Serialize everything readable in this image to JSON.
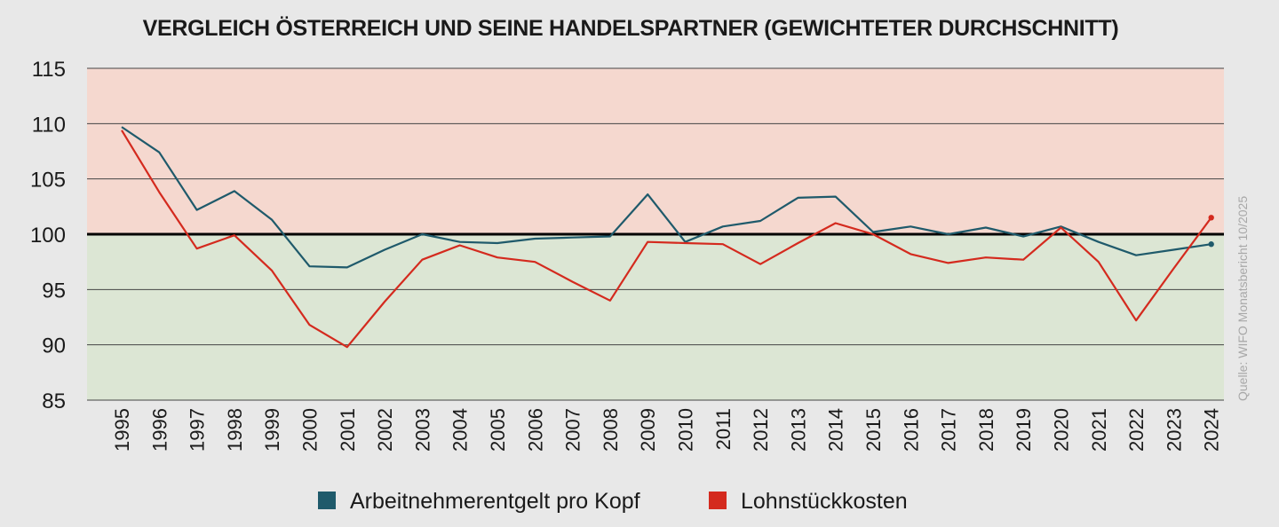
{
  "chart_data": {
    "type": "line",
    "title": "VERGLEICH ÖSTERREICH UND SEINE HANDELSPARTNER (GEWICHTETER DURCHSCHNITT)",
    "source": "Quelle: WIFO Monatsbericht 10/2025",
    "xlabel": "",
    "ylabel": "",
    "ylim": [
      85,
      115
    ],
    "yticks": [
      85,
      90,
      95,
      100,
      105,
      110,
      115
    ],
    "baseline": 100,
    "grid": true,
    "legend_position": "bottom",
    "categories": [
      "1995",
      "1996",
      "1997",
      "1998",
      "1999",
      "2000",
      "2001",
      "2002",
      "2003",
      "2004",
      "2005",
      "2006",
      "2007",
      "2008",
      "2009",
      "2010",
      "2011",
      "2012",
      "2013",
      "2014",
      "2015",
      "2016",
      "2017",
      "2018",
      "2019",
      "2020",
      "2021",
      "2022",
      "2023",
      "2024"
    ],
    "series": [
      {
        "name": "Arbeitnehmerentgelt pro Kopf",
        "color": "#1f5a6b",
        "values": [
          109.7,
          107.4,
          102.2,
          103.9,
          101.3,
          97.1,
          97.0,
          98.6,
          100.0,
          99.3,
          99.2,
          99.6,
          99.7,
          99.8,
          103.6,
          99.3,
          100.7,
          101.2,
          103.3,
          103.4,
          100.2,
          100.7,
          100.0,
          100.6,
          99.8,
          100.7,
          99.3,
          98.1,
          98.6,
          99.1
        ]
      },
      {
        "name": "Lohnstückkosten",
        "color": "#d42a1e",
        "values": [
          109.4,
          103.8,
          98.7,
          99.9,
          96.7,
          91.8,
          89.8,
          93.9,
          97.7,
          99.0,
          97.9,
          97.5,
          95.7,
          94.0,
          99.3,
          99.2,
          99.1,
          97.3,
          99.2,
          101.0,
          100.0,
          98.2,
          97.4,
          97.9,
          97.7,
          100.6,
          97.5,
          92.2,
          96.9,
          101.5
        ]
      }
    ]
  },
  "zones": {
    "above_color": "#f5d8cf",
    "below_color": "#dce6d4"
  }
}
